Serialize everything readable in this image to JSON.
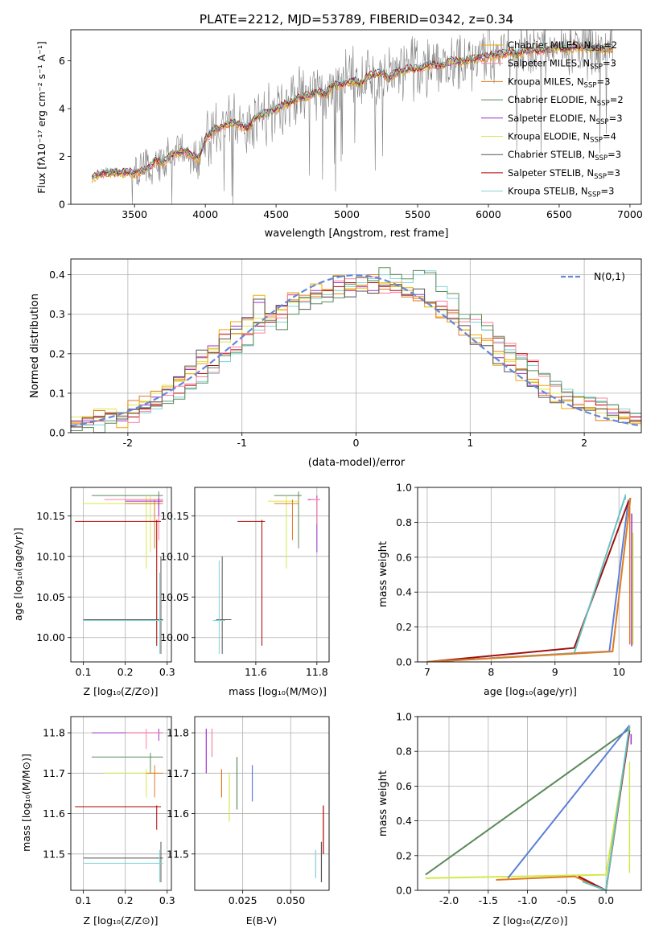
{
  "figure": {
    "title": "PLATE=2212, MJD=53789, FIBERID=0342, z=0.34"
  },
  "colors": {
    "chabrier_miles": "#f2a900",
    "salpeter_miles": "#ff7f9f",
    "kroupa_miles": "#e07b20",
    "chabrier_elodie": "#5a8a5a",
    "salpeter_elodie": "#9932cc",
    "kroupa_elodie": "#d9e84a",
    "chabrier_stelib": "#555555",
    "salpeter_stelib": "#b00000",
    "kroupa_stelib": "#7fd4d4",
    "data_gray": "#808080",
    "normal_curve": "#6688d8",
    "blue_line": "#5b7fd8",
    "green_line": "#5a8a5a",
    "orange_line": "#e07b20",
    "darkred_line": "#a01010",
    "teal_line": "#66c2c2",
    "yellow_line": "#d4e84a"
  },
  "chart_data": [
    {
      "type": "line",
      "panel": "spectrum",
      "xlabel": "wavelength [Angstrom, rest frame]",
      "ylabel": "Flux [f_λ 10^-17 erg cm^-2 s^-1 A^-1]",
      "xlim": [
        3050,
        7080
      ],
      "ylim": [
        0,
        7.3
      ],
      "xticks": [
        3500,
        4000,
        4500,
        5000,
        5500,
        6000,
        6500,
        7000
      ],
      "yticks": [
        0,
        2,
        4,
        6
      ],
      "legend_position": "top-right",
      "legend": [
        {
          "label": "Chabrier MILES, N",
          "sub": "SSP",
          "tail": "=2",
          "color_key": "chabrier_miles"
        },
        {
          "label": "Salpeter MILES, N",
          "sub": "SSP",
          "tail": "=3",
          "color_key": "salpeter_miles"
        },
        {
          "label": "Kroupa MILES, N",
          "sub": "SSP",
          "tail": "=3",
          "color_key": "kroupa_miles"
        },
        {
          "label": "Chabrier ELODIE, N",
          "sub": "SSP",
          "tail": "=2",
          "color_key": "chabrier_elodie"
        },
        {
          "label": "Salpeter ELODIE, N",
          "sub": "SSP",
          "tail": "=3",
          "color_key": "salpeter_elodie"
        },
        {
          "label": "Kroupa ELODIE, N",
          "sub": "SSP",
          "tail": "=4",
          "color_key": "kroupa_elodie"
        },
        {
          "label": "Chabrier STELIB, N",
          "sub": "SSP",
          "tail": "=3",
          "color_key": "chabrier_stelib"
        },
        {
          "label": "Salpeter STELIB, N",
          "sub": "SSP",
          "tail": "=3",
          "color_key": "salpeter_stelib"
        },
        {
          "label": "Kroupa STELIB, N",
          "sub": "SSP",
          "tail": "=3",
          "color_key": "kroupa_stelib"
        }
      ],
      "model_x": [
        3200,
        3250,
        3300,
        3350,
        3400,
        3450,
        3500,
        3550,
        3600,
        3650,
        3700,
        3750,
        3800,
        3850,
        3900,
        3950,
        4000,
        4050,
        4100,
        4150,
        4200,
        4250,
        4300,
        4350,
        4400,
        4450,
        4500,
        4550,
        4600,
        4650,
        4700,
        4750,
        4800,
        4850,
        4900,
        4950,
        5000,
        5050,
        5100,
        5150,
        5200,
        5250,
        5300,
        5350,
        5400,
        5450,
        5500,
        5550,
        5600,
        5650,
        5700,
        5750,
        5800,
        5850,
        5900,
        5950,
        6000,
        6050,
        6100,
        6150,
        6200,
        6250,
        6300,
        6350,
        6400,
        6450,
        6500,
        6550,
        6600,
        6650,
        6700,
        6750,
        6800,
        6850,
        6880
      ],
      "model_y": [
        1.1,
        1.25,
        1.32,
        1.35,
        1.3,
        1.35,
        1.28,
        1.38,
        1.5,
        1.85,
        1.75,
        2.0,
        2.15,
        2.25,
        2.05,
        1.9,
        2.7,
        3.05,
        3.2,
        3.35,
        3.45,
        3.3,
        3.2,
        3.6,
        3.75,
        3.85,
        4.0,
        4.15,
        4.25,
        4.45,
        4.5,
        4.6,
        4.7,
        4.6,
        5.0,
        4.95,
        5.1,
        5.2,
        5.05,
        5.35,
        5.45,
        5.5,
        5.25,
        5.55,
        5.6,
        5.7,
        5.65,
        5.75,
        5.85,
        5.8,
        5.9,
        6.0,
        5.95,
        6.05,
        6.1,
        6.15,
        6.2,
        6.25,
        6.3,
        6.35,
        6.3,
        6.4,
        6.45,
        6.4,
        6.45,
        6.5,
        6.55,
        6.5,
        6.55,
        6.6,
        6.5,
        6.55,
        6.5,
        6.55,
        6.5
      ]
    },
    {
      "type": "line",
      "panel": "residual-histogram",
      "xlabel": "(data-model)/error",
      "ylabel": "Normed distribution",
      "xlim": [
        -2.5,
        2.5
      ],
      "ylim": [
        0,
        0.44
      ],
      "xticks": [
        -2,
        -1,
        0,
        1,
        2
      ],
      "yticks": [
        0.0,
        0.1,
        0.2,
        0.3,
        0.4
      ],
      "legend": "N(0,1)",
      "bin_edges": [
        -2.5,
        -2.4,
        -2.3,
        -2.2,
        -2.1,
        -2.0,
        -1.9,
        -1.8,
        -1.7,
        -1.6,
        -1.5,
        -1.4,
        -1.3,
        -1.2,
        -1.1,
        -1.0,
        -0.9,
        -0.8,
        -0.7,
        -0.6,
        -0.5,
        -0.4,
        -0.3,
        -0.2,
        -0.1,
        0.0,
        0.1,
        0.2,
        0.3,
        0.4,
        0.5,
        0.6,
        0.7,
        0.8,
        0.9,
        1.0,
        1.1,
        1.2,
        1.3,
        1.4,
        1.5,
        1.6,
        1.7,
        1.8,
        1.9,
        2.0,
        2.1,
        2.2,
        2.3,
        2.4,
        2.5
      ],
      "series": [
        {
          "color_key": "salpeter_elodie",
          "values": [
            0.03,
            0.03,
            0.04,
            0.05,
            0.03,
            0.06,
            0.07,
            0.09,
            0.11,
            0.14,
            0.16,
            0.19,
            0.22,
            0.25,
            0.27,
            0.29,
            0.33,
            0.3,
            0.32,
            0.35,
            0.33,
            0.36,
            0.36,
            0.38,
            0.36,
            0.37,
            0.36,
            0.38,
            0.37,
            0.36,
            0.35,
            0.33,
            0.31,
            0.28,
            0.26,
            0.24,
            0.22,
            0.19,
            0.17,
            0.15,
            0.12,
            0.1,
            0.09,
            0.08,
            0.07,
            0.06,
            0.05,
            0.05,
            0.04,
            0.04
          ]
        },
        {
          "color_key": "salpeter_stelib",
          "values": [
            0.02,
            0.02,
            0.03,
            0.03,
            0.04,
            0.04,
            0.06,
            0.07,
            0.08,
            0.1,
            0.12,
            0.15,
            0.17,
            0.2,
            0.21,
            0.25,
            0.27,
            0.28,
            0.3,
            0.33,
            0.34,
            0.35,
            0.36,
            0.37,
            0.38,
            0.38,
            0.38,
            0.37,
            0.36,
            0.35,
            0.34,
            0.33,
            0.32,
            0.31,
            0.3,
            0.28,
            0.26,
            0.24,
            0.22,
            0.2,
            0.18,
            0.15,
            0.13,
            0.11,
            0.09,
            0.08,
            0.07,
            0.06,
            0.05,
            0.04
          ]
        },
        {
          "color_key": "kroupa_elodie",
          "values": [
            0.04,
            0.04,
            0.06,
            0.06,
            0.05,
            0.07,
            0.08,
            0.1,
            0.12,
            0.13,
            0.15,
            0.18,
            0.21,
            0.23,
            0.25,
            0.27,
            0.29,
            0.3,
            0.31,
            0.33,
            0.34,
            0.35,
            0.35,
            0.36,
            0.37,
            0.38,
            0.39,
            0.38,
            0.37,
            0.36,
            0.34,
            0.33,
            0.31,
            0.29,
            0.26,
            0.24,
            0.22,
            0.2,
            0.18,
            0.16,
            0.13,
            0.11,
            0.1,
            0.08,
            0.07,
            0.06,
            0.05,
            0.04,
            0.04,
            0.03
          ]
        },
        {
          "color_key": "kroupa_stelib",
          "values": [
            0.02,
            0.02,
            0.02,
            0.03,
            0.04,
            0.05,
            0.05,
            0.06,
            0.08,
            0.09,
            0.11,
            0.13,
            0.15,
            0.18,
            0.2,
            0.22,
            0.26,
            0.27,
            0.28,
            0.32,
            0.33,
            0.34,
            0.35,
            0.36,
            0.37,
            0.38,
            0.39,
            0.4,
            0.39,
            0.38,
            0.4,
            0.41,
            0.37,
            0.34,
            0.3,
            0.28,
            0.26,
            0.23,
            0.21,
            0.19,
            0.17,
            0.15,
            0.13,
            0.11,
            0.1,
            0.09,
            0.08,
            0.07,
            0.06,
            0.05
          ]
        }
      ]
    },
    {
      "type": "scatter",
      "panel": "Z-vs-age",
      "xlabel": "Z [log10(Z/Z⊙)]",
      "ylabel": "age [log10(age/yr)]",
      "xlim": [
        0.07,
        0.31
      ],
      "ylim": [
        9.97,
        10.185
      ],
      "xticks": [
        0.1,
        0.2,
        0.3
      ],
      "yticks": [
        10.0,
        10.05,
        10.1,
        10.15
      ]
    },
    {
      "type": "scatter",
      "panel": "mass-vs-age",
      "xlabel": "mass [log10(M/M⊙)]",
      "ylabel": "",
      "xlim": [
        11.4,
        11.84
      ],
      "ylim": [
        9.97,
        10.185
      ],
      "xticks": [
        11.6,
        11.8
      ],
      "yticks": [
        10.0,
        10.05,
        10.1,
        10.15
      ]
    },
    {
      "type": "line",
      "panel": "age-vs-massweight",
      "xlabel": "age [log10(age/yr)]",
      "ylabel": "mass weight",
      "xlim": [
        6.85,
        10.35
      ],
      "ylim": [
        0,
        1.0
      ],
      "xticks": [
        7,
        8,
        9,
        10
      ],
      "yticks": [
        0.0,
        0.2,
        0.4,
        0.6,
        0.8,
        1.0
      ]
    },
    {
      "type": "scatter",
      "panel": "Z-vs-mass",
      "xlabel": "Z [log10(Z/Z⊙)]",
      "ylabel": "mass [log10(M/M⊙)]",
      "xlim": [
        0.07,
        0.31
      ],
      "ylim": [
        11.41,
        11.84
      ],
      "xticks": [
        0.1,
        0.2,
        0.3
      ],
      "yticks": [
        11.5,
        11.6,
        11.7,
        11.8
      ]
    },
    {
      "type": "scatter",
      "panel": "EBV-vs-mass",
      "xlabel": "E(B-V)",
      "ylabel": "",
      "xlim": [
        0.0,
        0.07
      ],
      "ylim": [
        11.41,
        11.84
      ],
      "xticks": [
        0.025,
        0.05
      ],
      "xticklabels": [
        "0.025",
        "0.050"
      ],
      "yticks": [
        11.5,
        11.6,
        11.7,
        11.8
      ]
    },
    {
      "type": "line",
      "panel": "Z-vs-massweight",
      "xlabel": "Z [log10(Z/Z⊙)]",
      "ylabel": "mass weight",
      "xlim": [
        -2.4,
        0.45
      ],
      "ylim": [
        0,
        1.0
      ],
      "xticks": [
        -2.0,
        -1.5,
        -1.0,
        -0.5,
        0.0
      ],
      "yticks": [
        0.0,
        0.2,
        0.4,
        0.6,
        0.8,
        1.0
      ]
    }
  ]
}
